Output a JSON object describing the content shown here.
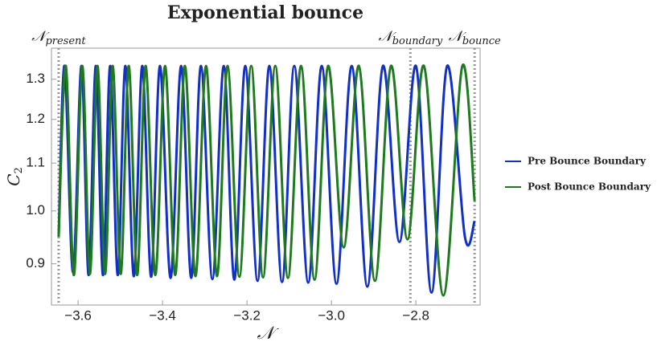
{
  "chart_data": {
    "type": "line",
    "title": "Exponential bounce",
    "xlabel": "𝒩",
    "ylabel": {
      "text": "C",
      "sub": "2"
    },
    "xlim": [
      -3.663,
      -2.648
    ],
    "ylim": [
      0.829,
      1.383
    ],
    "ylog": true,
    "xticks": [
      {
        "value": -3.6,
        "label": "−3.6"
      },
      {
        "value": -3.4,
        "label": "−3.4"
      },
      {
        "value": -3.2,
        "label": "−3.2"
      },
      {
        "value": -3.0,
        "label": "−3.0"
      },
      {
        "value": -2.8,
        "label": "−2.8"
      }
    ],
    "yticks": [
      0.9,
      {
        "value": 1,
        "label": "1.0"
      },
      1.1,
      1.2,
      1.3
    ],
    "vlines": [
      {
        "symbol": "𝒩",
        "sub": "present",
        "x": -3.646
      },
      {
        "symbol": "𝒩",
        "sub": "boundary",
        "x": -2.813
      },
      {
        "symbol": "𝒩",
        "sub": "bounce",
        "x": -2.661
      }
    ],
    "legend": "right",
    "series": [
      {
        "name": "Pre Bounce Boundary",
        "color": "#1030c8",
        "x": [
          -3.646,
          -3.632,
          -3.612,
          -3.592,
          -3.575,
          -3.558,
          -3.541,
          -3.524,
          -3.506,
          -3.488,
          -3.468,
          -3.448,
          -3.427,
          -3.406,
          -3.381,
          -3.356,
          -3.332,
          -3.309,
          -3.282,
          -3.255,
          -3.23,
          -3.204,
          -3.175,
          -3.147,
          -3.117,
          -3.088,
          -3.055,
          -3.023,
          -2.988,
          -2.952,
          -2.915,
          -2.878,
          -2.839,
          -2.8,
          -2.763,
          -2.726,
          -2.684,
          -2.661
        ],
        "values": [
          0.95,
          1.335,
          0.885,
          1.335,
          0.88,
          1.335,
          0.88,
          1.335,
          0.88,
          1.335,
          0.878,
          1.335,
          0.877,
          1.335,
          0.875,
          1.335,
          0.875,
          1.335,
          0.873,
          1.335,
          0.872,
          1.335,
          0.87,
          1.335,
          0.868,
          1.335,
          0.867,
          1.335,
          0.865,
          1.335,
          0.86,
          1.335,
          0.94,
          1.335,
          0.85,
          1.335,
          0.95,
          0.98
        ]
      },
      {
        "name": "Post Bounce Boundary",
        "color": "#1e7a1e",
        "x": [
          -3.646,
          -3.629,
          -3.61,
          -3.59,
          -3.572,
          -3.554,
          -3.536,
          -3.518,
          -3.499,
          -3.48,
          -3.46,
          -3.44,
          -3.417,
          -3.394,
          -3.37,
          -3.347,
          -3.322,
          -3.297,
          -3.271,
          -3.246,
          -3.218,
          -3.19,
          -3.162,
          -3.133,
          -3.103,
          -3.072,
          -3.04,
          -3.008,
          -2.971,
          -2.935,
          -2.897,
          -2.859,
          -2.82,
          -2.781,
          -2.735,
          -2.69,
          -2.661
        ],
        "values": [
          0.95,
          1.335,
          0.88,
          1.335,
          0.882,
          1.335,
          0.882,
          1.335,
          0.882,
          1.335,
          0.88,
          1.335,
          0.88,
          1.335,
          0.88,
          1.335,
          0.878,
          1.335,
          0.878,
          1.335,
          0.877,
          1.335,
          0.876,
          1.335,
          0.875,
          1.335,
          0.872,
          1.335,
          0.93,
          1.335,
          0.87,
          1.335,
          0.945,
          1.335,
          0.845,
          1.335,
          1.02
        ]
      }
    ]
  }
}
